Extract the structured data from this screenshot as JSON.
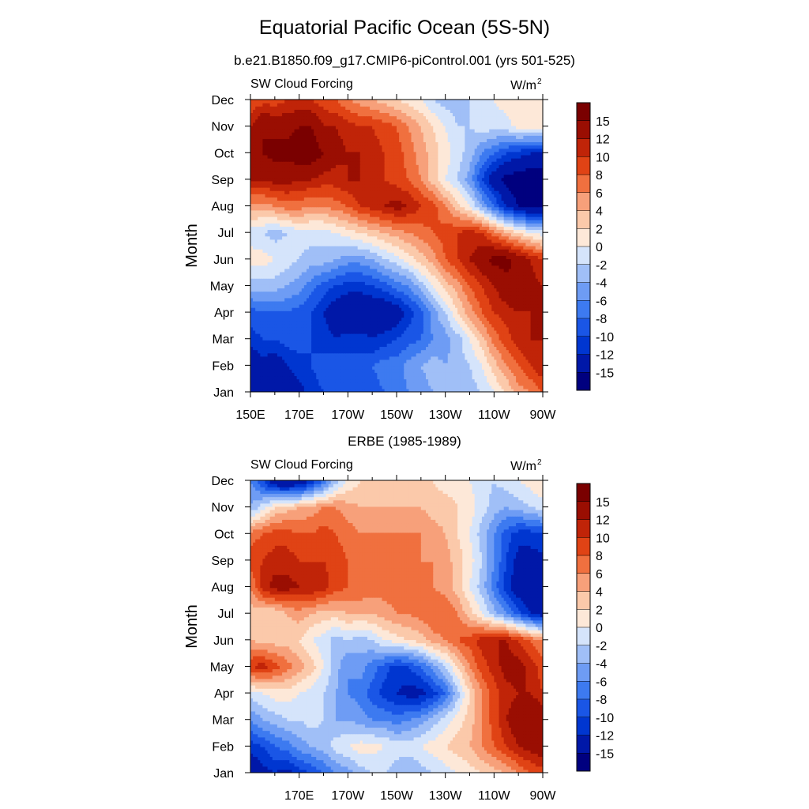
{
  "figure": {
    "title": "Equatorial Pacific Ocean (5S-5N)"
  },
  "colorbar": {
    "levels": [
      -15,
      -12,
      -10,
      -8,
      -6,
      -4,
      -2,
      0,
      2,
      4,
      6,
      8,
      10,
      12,
      15
    ],
    "colors": [
      "#00007f",
      "#0018a8",
      "#0036d0",
      "#1a56e6",
      "#3d7af0",
      "#6e9cf4",
      "#a0bff7",
      "#d5e4fb",
      "#fde8d8",
      "#fbc9aa",
      "#f7a07a",
      "#f0703f",
      "#e04315",
      "#c02408",
      "#9a0e02",
      "#7a0000"
    ]
  },
  "chart_data": [
    {
      "type": "heatmap",
      "title": "b.e21.B1850.f09_g17.CMIP6-piControl.001 (yrs 501-525)",
      "left_label": "SW Cloud Forcing",
      "units_label": "W/m",
      "units_sup": "2",
      "ylabel": "Month",
      "xlim": [
        150,
        270
      ],
      "x_ticks": [
        "150E",
        "170E",
        "170W",
        "150W",
        "130W",
        "110W",
        "90W"
      ],
      "y_ticks": [
        "Jan",
        "Feb",
        "Mar",
        "Apr",
        "May",
        "Jun",
        "Jul",
        "Aug",
        "Sep",
        "Oct",
        "Nov",
        "Dec"
      ],
      "x": [
        150,
        155,
        160,
        165,
        170,
        175,
        180,
        185,
        190,
        195,
        200,
        205,
        210,
        215,
        220,
        225,
        230,
        235,
        240,
        245,
        250,
        255,
        260,
        265,
        270
      ],
      "y": [
        1,
        2,
        3,
        4,
        5,
        6,
        7,
        8,
        9,
        10,
        11,
        12
      ],
      "z": [
        [
          -14,
          -13,
          -12,
          -14,
          -13,
          -11,
          -10,
          -9,
          -8,
          -9,
          -9,
          -8,
          -7,
          -6,
          -5,
          -4,
          -3,
          -4,
          -3,
          -2,
          0,
          2,
          5,
          6,
          8
        ],
        [
          -15,
          -13,
          -14,
          -12,
          -11,
          -10,
          -9,
          -8,
          -9,
          -9,
          -8,
          -7,
          -7,
          -5,
          -4,
          -3,
          -4,
          -3,
          -2,
          0,
          3,
          6,
          8,
          10,
          12
        ],
        [
          -11,
          -10,
          -10,
          -9,
          -9,
          -10,
          -11,
          -12,
          -11,
          -11,
          -12,
          -11,
          -10,
          -9,
          -8,
          -6,
          -5,
          -3,
          0,
          3,
          7,
          9,
          11,
          12,
          12
        ],
        [
          -9,
          -8,
          -8,
          -8,
          -9,
          -10,
          -12,
          -14,
          -15,
          -15,
          -15,
          -15,
          -14,
          -11,
          -9,
          -5,
          -2,
          2,
          5,
          8,
          10,
          11,
          12,
          12,
          12
        ],
        [
          -3,
          -3,
          -3,
          -4,
          -5,
          -7,
          -9,
          -10,
          -11,
          -11,
          -10,
          -9,
          -7,
          -6,
          -3,
          0,
          3,
          5,
          8,
          10,
          12,
          14,
          15,
          13,
          12
        ],
        [
          1,
          1,
          0,
          -1,
          -2,
          -3,
          -3,
          -4,
          -5,
          -5,
          -4,
          -2,
          -1,
          1,
          3,
          5,
          8,
          10,
          12,
          14,
          16,
          16,
          14,
          12,
          10
        ],
        [
          -1,
          -2,
          -3,
          -2,
          -1,
          -1,
          -1,
          0,
          1,
          2,
          3,
          4,
          5,
          6,
          7,
          8,
          9,
          10,
          11,
          10,
          7,
          4,
          2,
          0,
          -1
        ],
        [
          5,
          5,
          6,
          7,
          7,
          6,
          6,
          7,
          8,
          10,
          11,
          12,
          13,
          12,
          10,
          9,
          6,
          3,
          0,
          -4,
          -8,
          -12,
          -15,
          -16,
          -16
        ],
        [
          12,
          12,
          13,
          13,
          12,
          12,
          11,
          11,
          12,
          12,
          12,
          10,
          9,
          8,
          6,
          3,
          0,
          -2,
          -5,
          -10,
          -14,
          -16,
          -17,
          -17,
          -17
        ],
        [
          15,
          15,
          16,
          16,
          17,
          17,
          15,
          13,
          12,
          12,
          11,
          10,
          9,
          7,
          5,
          3,
          1,
          -1,
          -3,
          -6,
          -8,
          -10,
          -11,
          -12,
          -12
        ],
        [
          12,
          15,
          14,
          14,
          15,
          15,
          12,
          12,
          11,
          10,
          10,
          9,
          8,
          6,
          4,
          2,
          0,
          -2,
          -2,
          -1,
          -1,
          -1,
          1,
          1,
          1
        ],
        [
          8,
          9,
          9,
          10,
          10,
          10,
          9,
          8,
          6,
          5,
          4,
          3,
          2,
          1,
          0,
          -2,
          -3,
          -3,
          -2,
          -1,
          0,
          1,
          2,
          2,
          2
        ]
      ]
    },
    {
      "type": "heatmap",
      "title": "ERBE (1985-1989)",
      "left_label": "SW Cloud Forcing",
      "units_label": "W/m",
      "units_sup": "2",
      "ylabel": "Month",
      "xlim": [
        150,
        270
      ],
      "x_ticks": [
        "170E",
        "170W",
        "150W",
        "130W",
        "110W",
        "90W"
      ],
      "y_ticks": [
        "Jan",
        "Feb",
        "Mar",
        "Apr",
        "May",
        "Jun",
        "Jul",
        "Aug",
        "Sep",
        "Oct",
        "Nov",
        "Dec"
      ],
      "x": [
        150,
        155,
        160,
        165,
        170,
        175,
        180,
        185,
        190,
        195,
        200,
        205,
        210,
        215,
        220,
        225,
        230,
        235,
        240,
        245,
        250,
        255,
        260,
        265,
        270
      ],
      "y": [
        1,
        2,
        3,
        4,
        5,
        6,
        7,
        8,
        9,
        10,
        11,
        12
      ],
      "z": [
        [
          -15,
          -13,
          -12,
          -13,
          -11,
          -10,
          -8,
          -6,
          -5,
          -3,
          -2,
          -2,
          -3,
          -4,
          -3,
          -2,
          -1,
          0,
          1,
          2,
          3,
          4,
          6,
          8,
          9
        ],
        [
          -11,
          -10,
          -8,
          -7,
          -5,
          -4,
          -3,
          -1,
          0,
          1,
          1,
          0,
          -1,
          -1,
          0,
          1,
          2,
          3,
          4,
          6,
          8,
          10,
          12,
          13,
          14
        ],
        [
          -6,
          -4,
          -3,
          -2,
          -2,
          -1,
          -2,
          -4,
          -4,
          -5,
          -6,
          -6,
          -7,
          -6,
          -5,
          -3,
          -1,
          1,
          3,
          6,
          9,
          12,
          14,
          15,
          15
        ],
        [
          -1,
          0,
          1,
          1,
          0,
          -1,
          -2,
          -4,
          -6,
          -7,
          -9,
          -11,
          -12,
          -13,
          -13,
          -11,
          -8,
          -3,
          2,
          6,
          9,
          11,
          12,
          12,
          10
        ],
        [
          10,
          11,
          9,
          7,
          5,
          3,
          0,
          -3,
          -6,
          -5,
          -7,
          -9,
          -11,
          -10,
          -8,
          -5,
          -2,
          2,
          6,
          9,
          11,
          13,
          13,
          11,
          9
        ],
        [
          4,
          3,
          3,
          3,
          2,
          0,
          -1,
          -3,
          -2,
          -3,
          -2,
          0,
          1,
          2,
          3,
          5,
          6,
          8,
          9,
          11,
          12,
          12,
          10,
          8,
          6
        ],
        [
          3,
          2,
          2,
          4,
          5,
          4,
          3,
          3,
          4,
          4,
          4,
          5,
          6,
          6,
          7,
          8,
          8,
          6,
          3,
          0,
          -3,
          -6,
          -9,
          -12,
          -14
        ],
        [
          6,
          11,
          13,
          13,
          12,
          12,
          11,
          9,
          8,
          8,
          7,
          7,
          7,
          7,
          7,
          6,
          5,
          3,
          0,
          -3,
          -7,
          -11,
          -14,
          -15,
          -15
        ],
        [
          9,
          10,
          11,
          11,
          10,
          10,
          10,
          9,
          8,
          7,
          7,
          7,
          6,
          6,
          6,
          6,
          5,
          3,
          1,
          -2,
          -6,
          -10,
          -13,
          -13,
          -13
        ],
        [
          7,
          8,
          9,
          9,
          8,
          8,
          9,
          8,
          7,
          6,
          6,
          6,
          6,
          6,
          6,
          5,
          4,
          2,
          0,
          -3,
          -6,
          -9,
          -11,
          -11,
          -10
        ],
        [
          -4,
          -1,
          2,
          3,
          4,
          5,
          6,
          6,
          5,
          4,
          4,
          4,
          4,
          4,
          4,
          3,
          3,
          2,
          1,
          -1,
          -3,
          -4,
          -3,
          -2,
          -1
        ],
        [
          -6,
          -10,
          -15,
          -16,
          -15,
          -12,
          -8,
          -3,
          0,
          2,
          3,
          3,
          3,
          2,
          2,
          2,
          1,
          1,
          0,
          -1,
          -2,
          -1,
          0,
          1,
          2
        ]
      ]
    }
  ]
}
